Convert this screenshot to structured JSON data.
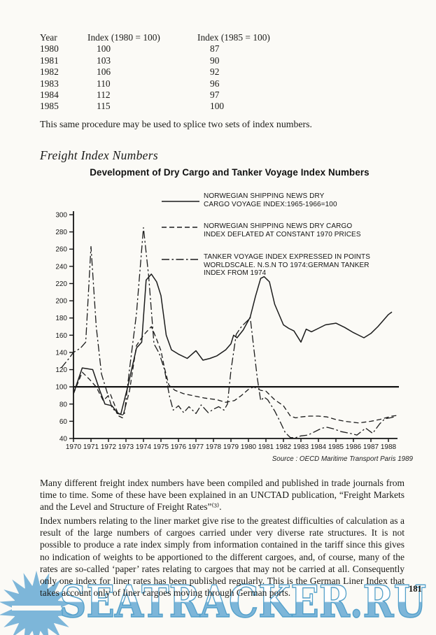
{
  "page": {
    "number": "181",
    "background": "#fbfaf6"
  },
  "splice_table": {
    "columns": [
      "Year",
      "Index (1980 = 100)",
      "Index (1985 = 100)"
    ],
    "rows": [
      [
        "1980",
        "100",
        "87"
      ],
      [
        "1981",
        "103",
        "90"
      ],
      [
        "1982",
        "106",
        "92"
      ],
      [
        "1983",
        "110",
        "96"
      ],
      [
        "1984",
        "112",
        "97"
      ],
      [
        "1985",
        "115",
        "100"
      ]
    ]
  },
  "splice_note": "This same procedure may be used to splice two sets of index numbers.",
  "section_heading": "Freight Index Numbers",
  "figure": {
    "title": "Development of Dry Cargo and Tanker Voyage Index Numbers",
    "source": "Source : OECD Maritime Transport Paris 1989",
    "legend": [
      {
        "style": "solid",
        "lines": [
          "NORWEGIAN SHIPPING NEWS DRY",
          "CARGO VOYAGE INDEX:1965-1966=100"
        ]
      },
      {
        "style": "dashed",
        "lines": [
          "NORWEGIAN SHIPPING NEWS DRY CARGO",
          "INDEX DEFLATED AT CONSTANT 1970 PRICES"
        ]
      },
      {
        "style": "dashdot",
        "lines": [
          "TANKER VOYAGE INDEX EXPRESSED IN POINTS",
          "WORLDSCALE. N.S.N TO 1974:GERMAN TANKER",
          "INDEX FROM 1974"
        ]
      }
    ]
  },
  "chart_data": {
    "type": "line",
    "title": "Development of Dry Cargo and Tanker Voyage Index Numbers",
    "xlabel": "",
    "ylabel": "",
    "ylim": [
      40,
      300
    ],
    "x_range": [
      1969.3,
      1988.7
    ],
    "grid": false,
    "legend_position": "top-right",
    "reference_line": 100,
    "yticks": [
      40,
      60,
      80,
      100,
      120,
      140,
      160,
      180,
      200,
      220,
      240,
      260,
      280,
      300
    ],
    "xticks": [
      "1970",
      "1971",
      "1972",
      "1973",
      "1974",
      "1975",
      "1976",
      "1977",
      "1978",
      "1979",
      "1980",
      "1981",
      "1982",
      "1983",
      "1984",
      "1985",
      "1986",
      "1987",
      "1988"
    ],
    "source": "Source : OECD Maritime Transport Paris 1989",
    "series": [
      {
        "name": "Norwegian Shipping News dry cargo voyage index (1965-1966=100)",
        "style": "solid",
        "points": [
          [
            1970,
            92
          ],
          [
            1970.5,
            122
          ],
          [
            1971.1,
            120
          ],
          [
            1971.5,
            96
          ],
          [
            1971.8,
            80
          ],
          [
            1972.2,
            78
          ],
          [
            1972.5,
            70
          ],
          [
            1972.7,
            68
          ],
          [
            1973.1,
            100
          ],
          [
            1973.6,
            145
          ],
          [
            1973.9,
            152
          ],
          [
            1974.15,
            224
          ],
          [
            1974.45,
            231
          ],
          [
            1974.75,
            222
          ],
          [
            1975,
            206
          ],
          [
            1975.3,
            160
          ],
          [
            1975.6,
            143
          ],
          [
            1976,
            138
          ],
          [
            1976.5,
            133
          ],
          [
            1977,
            142
          ],
          [
            1977.4,
            131
          ],
          [
            1977.8,
            133
          ],
          [
            1978.2,
            136
          ],
          [
            1978.7,
            143
          ],
          [
            1979,
            150
          ],
          [
            1979.15,
            160
          ],
          [
            1979.35,
            157
          ],
          [
            1979.7,
            166
          ],
          [
            1980.1,
            181
          ],
          [
            1980.4,
            205
          ],
          [
            1980.7,
            226
          ],
          [
            1980.9,
            228
          ],
          [
            1981.2,
            222
          ],
          [
            1981.5,
            196
          ],
          [
            1982,
            172
          ],
          [
            1982.3,
            168
          ],
          [
            1982.6,
            165
          ],
          [
            1983,
            152
          ],
          [
            1983.3,
            167
          ],
          [
            1983.6,
            164
          ],
          [
            1984,
            168
          ],
          [
            1984.4,
            172
          ],
          [
            1985,
            174
          ],
          [
            1985.5,
            169
          ],
          [
            1986,
            163
          ],
          [
            1986.6,
            157
          ],
          [
            1987,
            162
          ],
          [
            1987.4,
            170
          ],
          [
            1988,
            184
          ],
          [
            1988.2,
            187
          ]
        ]
      },
      {
        "name": "Norwegian Shipping News dry cargo index deflated at constant 1970 prices",
        "style": "dashed",
        "points": [
          [
            1970,
            92
          ],
          [
            1970.5,
            117
          ],
          [
            1970.9,
            109
          ],
          [
            1971.3,
            100
          ],
          [
            1971.7,
            84
          ],
          [
            1972.1,
            92
          ],
          [
            1972.6,
            66
          ],
          [
            1972.8,
            64
          ],
          [
            1973.2,
            95
          ],
          [
            1973.6,
            148
          ],
          [
            1974,
            160
          ],
          [
            1974.45,
            170
          ],
          [
            1974.7,
            158
          ],
          [
            1975,
            142
          ],
          [
            1975.2,
            122
          ],
          [
            1975.45,
            102
          ],
          [
            1975.8,
            96
          ],
          [
            1976.3,
            92
          ],
          [
            1977,
            89
          ],
          [
            1977.5,
            87
          ],
          [
            1978.2,
            85
          ],
          [
            1978.7,
            82
          ],
          [
            1979.2,
            84
          ],
          [
            1979.6,
            90
          ],
          [
            1980,
            97
          ],
          [
            1980.3,
            100
          ],
          [
            1980.7,
            96
          ],
          [
            1981,
            95
          ],
          [
            1981.5,
            85
          ],
          [
            1982,
            78
          ],
          [
            1982.4,
            66
          ],
          [
            1982.7,
            64
          ],
          [
            1983,
            65
          ],
          [
            1983.5,
            66
          ],
          [
            1984,
            66
          ],
          [
            1984.5,
            65
          ],
          [
            1985,
            62
          ],
          [
            1985.5,
            60
          ],
          [
            1986.3,
            58
          ],
          [
            1987,
            60
          ],
          [
            1987.5,
            62
          ],
          [
            1988.2,
            66
          ],
          [
            1988.6,
            67
          ]
        ]
      },
      {
        "name": "Tanker voyage index in points Worldscale (N.S.N to 1974, German tanker index from 1974)",
        "style": "dashdot",
        "points": [
          [
            1969.3,
            122
          ],
          [
            1969.7,
            132
          ],
          [
            1970,
            140
          ],
          [
            1970.4,
            145
          ],
          [
            1970.7,
            152
          ],
          [
            1971,
            263
          ],
          [
            1971.3,
            170
          ],
          [
            1971.6,
            115
          ],
          [
            1971.9,
            95
          ],
          [
            1972.2,
            76
          ],
          [
            1972.5,
            69
          ],
          [
            1972.9,
            67
          ],
          [
            1973.2,
            120
          ],
          [
            1973.6,
            185
          ],
          [
            1974,
            285
          ],
          [
            1974.3,
            228
          ],
          [
            1974.6,
            150
          ],
          [
            1974.9,
            139
          ],
          [
            1975.2,
            120
          ],
          [
            1975.5,
            88
          ],
          [
            1975.7,
            73
          ],
          [
            1976,
            78
          ],
          [
            1976.3,
            70
          ],
          [
            1976.6,
            77
          ],
          [
            1977,
            69
          ],
          [
            1977.3,
            79
          ],
          [
            1977.7,
            70
          ],
          [
            1978,
            74
          ],
          [
            1978.3,
            77
          ],
          [
            1978.6,
            73
          ],
          [
            1978.8,
            80
          ],
          [
            1979,
            119
          ],
          [
            1979.3,
            161
          ],
          [
            1979.6,
            170
          ],
          [
            1980,
            178
          ],
          [
            1980.1,
            181
          ],
          [
            1980.3,
            146
          ],
          [
            1980.5,
            111
          ],
          [
            1980.7,
            84
          ],
          [
            1980.9,
            88
          ],
          [
            1981.1,
            85
          ],
          [
            1981.5,
            72
          ],
          [
            1981.8,
            60
          ],
          [
            1982.1,
            47
          ],
          [
            1982.4,
            41
          ],
          [
            1982.7,
            41
          ],
          [
            1983,
            43
          ],
          [
            1983.4,
            44
          ],
          [
            1983.8,
            48
          ],
          [
            1984.2,
            52
          ],
          [
            1984.5,
            53
          ],
          [
            1984.9,
            51
          ],
          [
            1985.3,
            48
          ],
          [
            1985.8,
            46
          ],
          [
            1986.2,
            44
          ],
          [
            1986.7,
            52
          ],
          [
            1987.1,
            46
          ],
          [
            1987.5,
            57
          ],
          [
            1987.8,
            63
          ],
          [
            1988.1,
            64
          ],
          [
            1988.3,
            65
          ]
        ]
      }
    ]
  },
  "paragraphs": [
    "Many different freight index numbers have been compiled and published in trade journals from time to time. Some of these have been explained in an UNCTAD publication, “Freight Markets and the Level and Structure of Freight Rates”⁽³⁾.",
    "Index numbers relating to the liner market give rise to the greatest difficulties of calculation as a result of the large numbers of cargoes carried under very diverse rate structures. It is not possible to produce a rate index simply from information contained in the tariff since this gives no indication of weights to be apportioned to the different cargoes, and, of course, many of the rates are so-called ‘paper’ rates relating to cargoes that may not be carried at all. Consequently only one index for liner rates has been published regularly. This is the German Liner Index that takes account only of liner cargoes moving through German ports."
  ],
  "watermark": {
    "text": "SEATRACKER.RU",
    "fill": "#7db6d9",
    "outline": "#53a0ca"
  }
}
